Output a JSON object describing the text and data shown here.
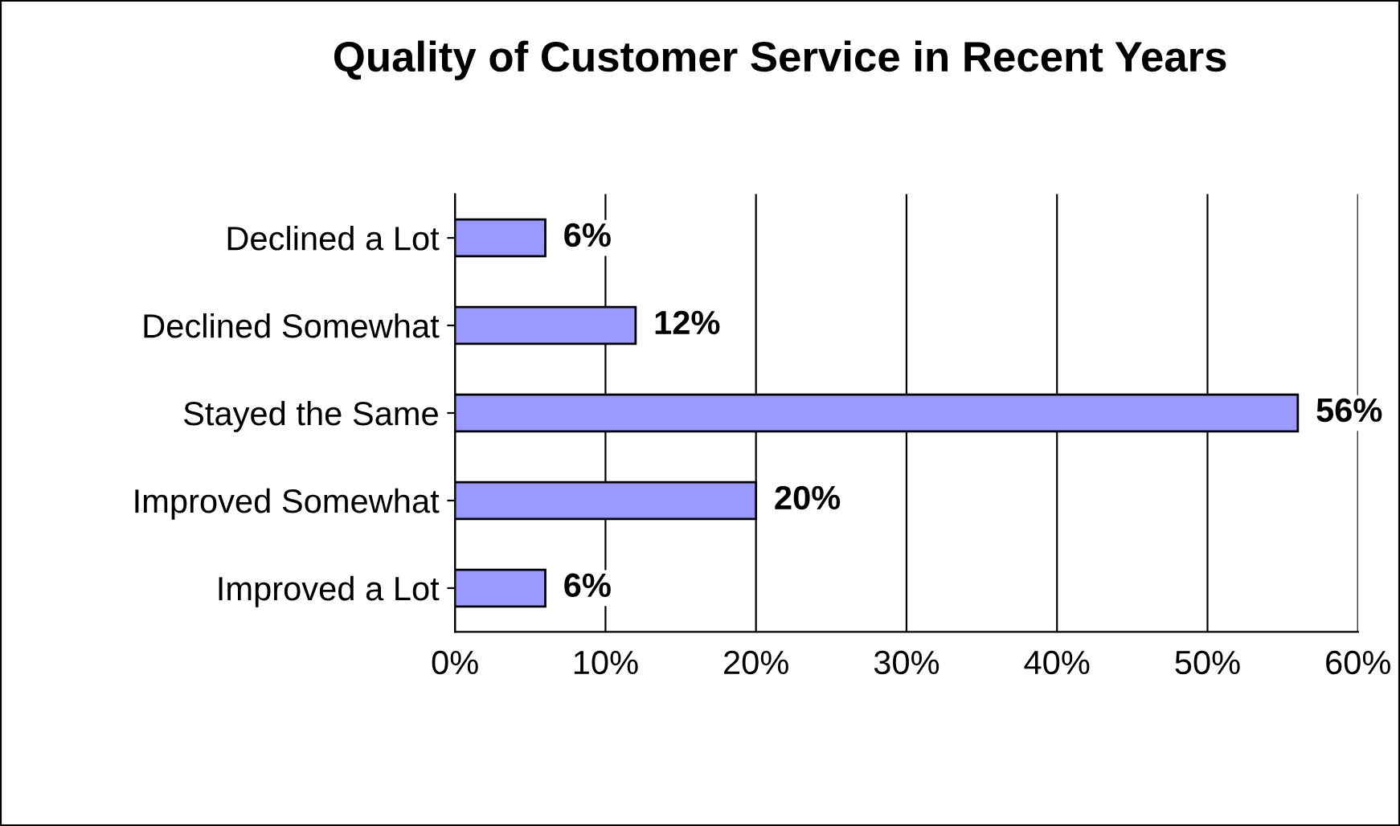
{
  "chart_data": {
    "type": "bar",
    "orientation": "horizontal",
    "title": "Quality of Customer Service in Recent Years",
    "categories": [
      "Declined a Lot",
      "Declined Somewhat",
      "Stayed the Same",
      "Improved Somewhat",
      "Improved a Lot"
    ],
    "values": [
      6,
      12,
      56,
      20,
      6
    ],
    "value_labels": [
      "6%",
      "12%",
      "56%",
      "20%",
      "6%"
    ],
    "color": "#9999ff",
    "xlim": [
      0,
      60
    ],
    "xticks": [
      {
        "value": 0,
        "label": "0%"
      },
      {
        "value": 10,
        "label": "10%"
      },
      {
        "value": 20,
        "label": "20%"
      },
      {
        "value": 30,
        "label": "30%"
      },
      {
        "value": 40,
        "label": "40%"
      },
      {
        "value": 50,
        "label": "50%"
      },
      {
        "value": 60,
        "label": "60%"
      }
    ],
    "grid": "x"
  }
}
